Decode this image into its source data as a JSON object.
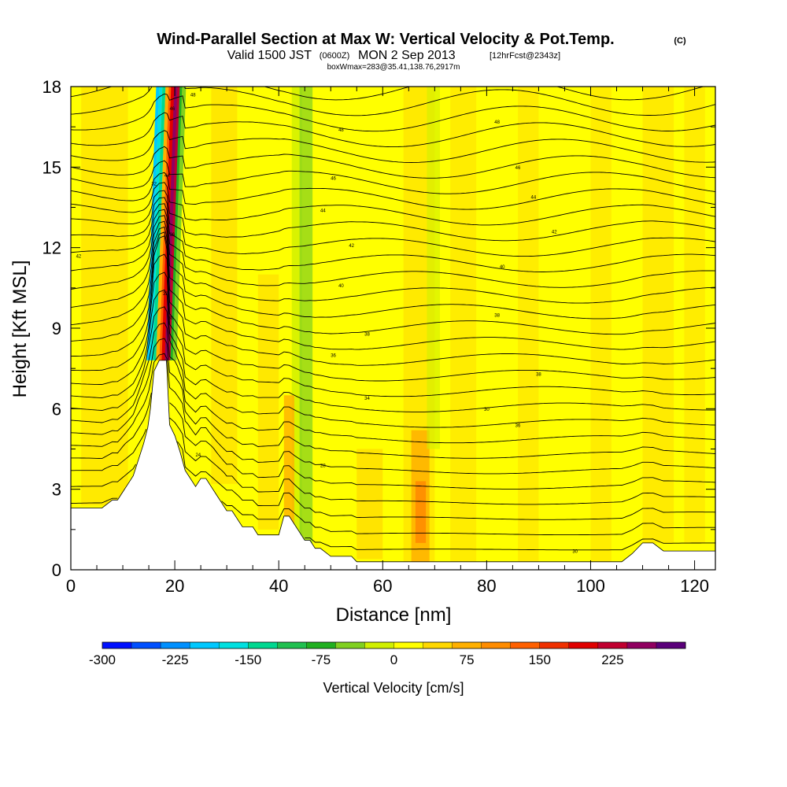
{
  "header": {
    "title": "Wind-Parallel Section at Max W: Vertical Velocity & Pot.Temp.",
    "title_mark": "(C)",
    "valid_prefix": "Valid 1500 JST",
    "valid_zulu": "(0600Z)",
    "valid_date": "MON 2 Sep 2013",
    "forecast": "[12hrFcst@2343z]",
    "boxinfo": "boxWmax=283@35.41,138.76,2917m"
  },
  "chart_data": {
    "type": "heatmap",
    "xlabel": "Distance [nm]",
    "ylabel": "Height [Kft MSL]",
    "xlim": [
      0,
      124
    ],
    "ylim": [
      0,
      18
    ],
    "x_ticks": [
      0,
      20,
      40,
      60,
      80,
      100,
      120
    ],
    "y_ticks": [
      0,
      3,
      6,
      9,
      12,
      15,
      18
    ],
    "grid": false,
    "colorbar": {
      "label": "Vertical Velocity [cm/s]",
      "ticks": [
        "-300",
        "-225",
        "-150",
        "-75",
        "0",
        "75",
        "150",
        "225"
      ],
      "colors": [
        "#0010ff",
        "#0050ff",
        "#0090ff",
        "#00c8ff",
        "#00e0e0",
        "#00d890",
        "#20c050",
        "#20b020",
        "#80d020",
        "#d0f000",
        "#ffff00",
        "#ffd800",
        "#ffb000",
        "#ff8c00",
        "#ff6000",
        "#f03000",
        "#e00000",
        "#c00030",
        "#900060",
        "#5a007a"
      ]
    },
    "wmax_column": {
      "x": [
        15.5,
        19.5
      ],
      "bottom": 7.8,
      "top": 18
    },
    "terrain": {
      "x": [
        0,
        3,
        6,
        8,
        9,
        10,
        11,
        12,
        13,
        14,
        14.8,
        15.3,
        16,
        17,
        17.8,
        18.4,
        19,
        20,
        21,
        22,
        23,
        24,
        25,
        26,
        27,
        28,
        29,
        30,
        31,
        32,
        33,
        34,
        35,
        36,
        37,
        38,
        39,
        40,
        41,
        42,
        43,
        44,
        45,
        46,
        47,
        48,
        50,
        52,
        54,
        55,
        57,
        60,
        65,
        68,
        70,
        75,
        80,
        90,
        100,
        104,
        106,
        108,
        110,
        112,
        114,
        116,
        120,
        124
      ],
      "y": [
        2.3,
        2.3,
        2.3,
        2.6,
        2.6,
        2.9,
        3.2,
        3.5,
        4.1,
        4.7,
        5.3,
        6.0,
        7.4,
        7.8,
        7.8,
        7.8,
        5.4,
        5.0,
        4.4,
        3.7,
        3.4,
        3.1,
        3.4,
        3.4,
        3.1,
        2.8,
        2.5,
        2.2,
        2.2,
        1.9,
        1.6,
        1.6,
        1.6,
        1.3,
        1.3,
        1.3,
        1.3,
        1.3,
        2.0,
        2.0,
        1.7,
        1.4,
        1.1,
        1.1,
        0.8,
        0.8,
        0.5,
        0.5,
        0.5,
        0.3,
        0.3,
        0.3,
        0.3,
        0.3,
        0.3,
        0.3,
        0.3,
        0.3,
        0.3,
        0.3,
        0.3,
        0.6,
        1.0,
        1.0,
        0.7,
        0.7,
        0.7,
        0.7
      ]
    },
    "isentropes": {
      "levels": [
        24,
        26,
        28,
        30,
        32,
        34,
        36,
        38,
        40,
        42,
        44,
        46,
        48
      ],
      "labels": [
        {
          "text": "24",
          "x": 24.5,
          "y": 4.3
        },
        {
          "text": "28",
          "x": 48.5,
          "y": 3.9
        },
        {
          "text": "30",
          "x": 97,
          "y": 0.7
        },
        {
          "text": "34",
          "x": 57,
          "y": 6.4
        },
        {
          "text": "30",
          "x": 80,
          "y": 6.0
        },
        {
          "text": "36",
          "x": 86,
          "y": 5.4
        },
        {
          "text": "38",
          "x": 90,
          "y": 7.3
        },
        {
          "text": "36",
          "x": 50.5,
          "y": 8.0
        },
        {
          "text": "38",
          "x": 57,
          "y": 8.8
        },
        {
          "text": "38",
          "x": 82,
          "y": 9.5
        },
        {
          "text": "40",
          "x": 52,
          "y": 10.6
        },
        {
          "text": "40",
          "x": 83,
          "y": 11.3
        },
        {
          "text": "42",
          "x": 1.5,
          "y": 11.7
        },
        {
          "text": "42",
          "x": 93,
          "y": 12.6
        },
        {
          "text": "44",
          "x": 89,
          "y": 13.9
        },
        {
          "text": "46",
          "x": 86,
          "y": 15.0
        },
        {
          "text": "48",
          "x": 82,
          "y": 16.7
        },
        {
          "text": "42",
          "x": 54,
          "y": 12.1
        },
        {
          "text": "44",
          "x": 48.5,
          "y": 13.4
        },
        {
          "text": "46",
          "x": 50.5,
          "y": 14.6
        },
        {
          "text": "48",
          "x": 52,
          "y": 16.4
        },
        {
          "text": "48",
          "x": 23.5,
          "y": 17.7
        },
        {
          "text": "46",
          "x": 19.5,
          "y": 17.2
        },
        {
          "text": "44",
          "x": 18.5,
          "y": 14.7
        },
        {
          "text": "32",
          "x": 16,
          "y": 14.4
        },
        {
          "text": "32",
          "x": 18.2,
          "y": 10.3
        },
        {
          "text": "36",
          "x": 19.5,
          "y": 12.5
        },
        {
          "text": "30",
          "x": 19.2,
          "y": 9.4
        }
      ]
    }
  }
}
